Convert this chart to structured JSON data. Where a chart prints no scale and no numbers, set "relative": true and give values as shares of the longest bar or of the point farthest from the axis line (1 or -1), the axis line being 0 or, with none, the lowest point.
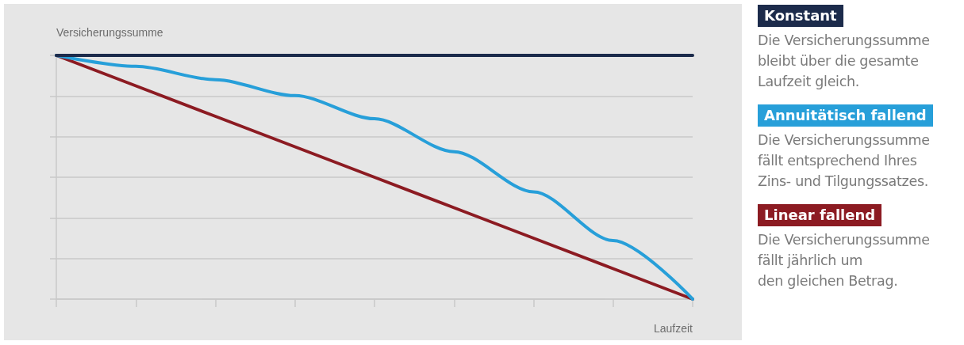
{
  "chart_data": {
    "type": "line",
    "relative": true,
    "ylabel": "Versicherungssumme",
    "xlabel": "Laufzeit",
    "categories": [
      null,
      null,
      null,
      null,
      null,
      null,
      null,
      null,
      null
    ],
    "series": [
      {
        "name": "Konstant",
        "color": "#1c2b4b",
        "values": [
          1,
          1,
          1,
          1,
          1,
          1,
          1,
          1,
          1
        ]
      },
      {
        "name": "Annuitätisch fallend",
        "color": "#279fd9",
        "values": [
          1,
          0.955,
          0.9,
          0.835,
          0.74,
          0.605,
          0.44,
          0.24,
          0
        ]
      },
      {
        "name": "Linear fallend",
        "color": "#8c1b22",
        "values": [
          1,
          0.875,
          0.75,
          0.625,
          0.5,
          0.375,
          0.25,
          0.125,
          0
        ]
      }
    ],
    "annotations": [
      "Die Versicherungssumme\nbleibt über die gesamte\nLaufzeit gleich.",
      "Die Versicherungssumme\nfällt entsprechend Ihres\nZins- und Tilgungssatzes.",
      "Die Versicherungssumme\nfällt jährlich um\nden gleichen Betrag."
    ],
    "grid": "y",
    "legend": "right",
    "marker": "none",
    "line_style": "solid"
  }
}
